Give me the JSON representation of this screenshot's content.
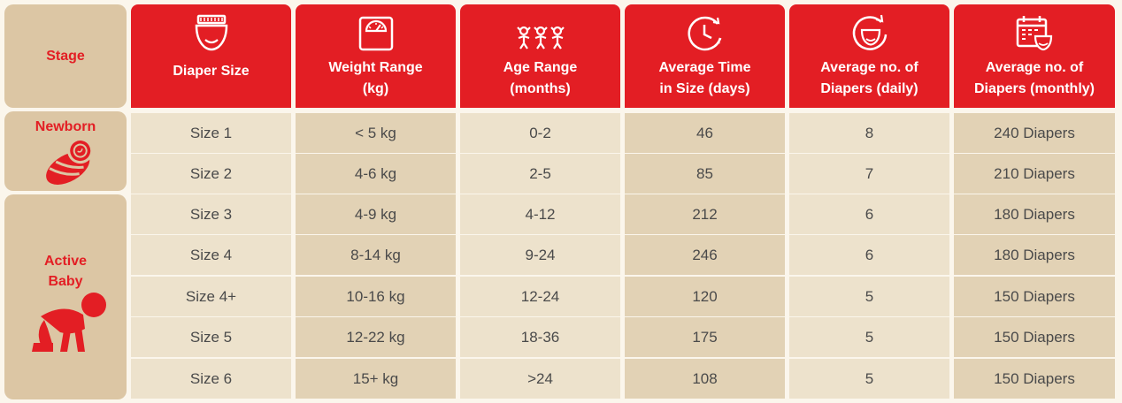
{
  "chart_data": {
    "type": "table",
    "stage_header": "Stage",
    "stages": [
      {
        "name": "Newborn",
        "rows": 2,
        "icon": "swaddled-baby-icon"
      },
      {
        "name_lines": [
          "Active",
          "Baby"
        ],
        "rows": 5,
        "icon": "crawling-baby-icon"
      }
    ],
    "columns": [
      {
        "lines": [
          "Diaper Size"
        ],
        "icon": "diaper-icon"
      },
      {
        "lines": [
          "Weight Range",
          "(kg)"
        ],
        "icon": "scale-icon"
      },
      {
        "lines": [
          "Age Range",
          "(months)"
        ],
        "icon": "children-icon"
      },
      {
        "lines": [
          "Average Time",
          "in Size (days)"
        ],
        "icon": "clock-icon"
      },
      {
        "lines": [
          "Average no. of",
          "Diapers (daily)"
        ],
        "icon": "diaper-refresh-icon"
      },
      {
        "lines": [
          "Average no. of",
          "Diapers (monthly)"
        ],
        "icon": "calendar-diaper-icon"
      }
    ],
    "rows": [
      [
        "Size 1",
        "< 5 kg",
        "0-2",
        "46",
        "8",
        "240 Diapers"
      ],
      [
        "Size 2",
        "4-6 kg",
        "2-5",
        "85",
        "7",
        "210 Diapers"
      ],
      [
        "Size 3",
        "4-9 kg",
        "4-12",
        "212",
        "6",
        "180 Diapers"
      ],
      [
        "Size 4",
        "8-14 kg",
        "9-24",
        "246",
        "6",
        "180 Diapers"
      ],
      [
        "Size 4+",
        "10-16 kg",
        "12-24",
        "120",
        "5",
        "150 Diapers"
      ],
      [
        "Size 5",
        "12-22 kg",
        "18-36",
        "175",
        "5",
        "150 Diapers"
      ],
      [
        "Size 6",
        "15+ kg",
        ">24",
        "108",
        "5",
        "150 Diapers"
      ]
    ]
  },
  "colors": {
    "accent_red": "#e31e24",
    "stage_bg": "#dcc6a4",
    "row_light": "#ede2cc",
    "row_dark": "#e2d2b5",
    "text": "#4a4a4a"
  }
}
